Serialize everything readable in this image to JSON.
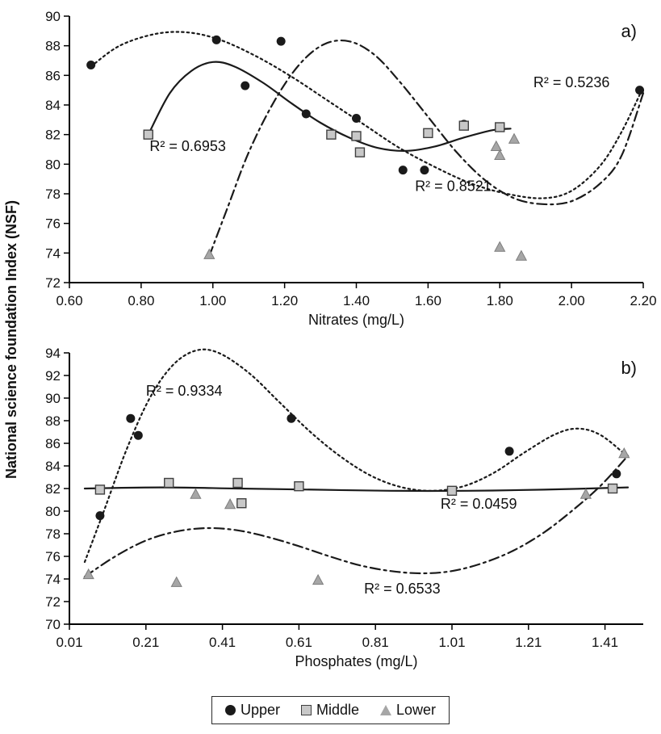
{
  "shared_ylabel": "National science foundation Index (NSF)",
  "colors": {
    "axis": "#000000",
    "text": "#111111",
    "line": "#1a1a1a",
    "upper_fill": "#1a1a1a",
    "middle_fill": "#c8c8c8",
    "middle_edge": "#404040",
    "lower_fill": "#a6a6a6",
    "lower_edge": "#7d7d7d"
  },
  "legend": {
    "items": [
      {
        "label": "Upper",
        "marker": "circle"
      },
      {
        "label": "Middle",
        "marker": "square"
      },
      {
        "label": "Lower",
        "marker": "triangle"
      }
    ]
  },
  "chart_data": [
    {
      "type": "scatter",
      "panel_label": "a)",
      "xlabel": "Nitrates (mg/L)",
      "xlim": [
        0.6,
        2.2
      ],
      "ylim": [
        72,
        90
      ],
      "xticks": [
        0.6,
        0.8,
        1.0,
        1.2,
        1.4,
        1.6,
        1.8,
        2.0,
        2.2
      ],
      "xtick_labels": [
        "0.60",
        "0.80",
        "1.00",
        "1.20",
        "1.40",
        "1.60",
        "1.80",
        "2.00",
        "2.20"
      ],
      "yticks": [
        72,
        74,
        76,
        78,
        80,
        82,
        84,
        86,
        88,
        90
      ],
      "series": [
        {
          "name": "Upper",
          "marker": "circle",
          "points": [
            [
              0.66,
              86.7
            ],
            [
              1.01,
              88.4
            ],
            [
              1.09,
              85.3
            ],
            [
              1.19,
              88.3
            ],
            [
              1.26,
              83.4
            ],
            [
              1.4,
              83.1
            ],
            [
              1.53,
              79.6
            ],
            [
              1.59,
              79.6
            ],
            [
              1.7,
              82.7
            ],
            [
              2.19,
              85.0
            ]
          ]
        },
        {
          "name": "Middle",
          "marker": "square",
          "points": [
            [
              0.82,
              82.0
            ],
            [
              1.33,
              82.0
            ],
            [
              1.4,
              81.9
            ],
            [
              1.41,
              80.8
            ],
            [
              1.6,
              82.1
            ],
            [
              1.7,
              82.6
            ],
            [
              1.8,
              82.5
            ]
          ]
        },
        {
          "name": "Lower",
          "marker": "triangle",
          "points": [
            [
              0.99,
              73.9
            ],
            [
              1.79,
              81.2
            ],
            [
              1.8,
              80.6
            ],
            [
              1.84,
              81.7
            ],
            [
              1.8,
              74.4
            ],
            [
              1.86,
              73.8
            ]
          ]
        }
      ],
      "trendlines": [
        {
          "series": "Upper",
          "style": "dotted",
          "points": [
            [
              0.66,
              86.6
            ],
            [
              0.74,
              88.0
            ],
            [
              0.84,
              88.8
            ],
            [
              0.93,
              88.9
            ],
            [
              1.02,
              88.4
            ],
            [
              1.12,
              87.3
            ],
            [
              1.22,
              85.9
            ],
            [
              1.32,
              84.3
            ],
            [
              1.42,
              82.7
            ],
            [
              1.52,
              81.1
            ],
            [
              1.62,
              79.8
            ],
            [
              1.72,
              78.7
            ],
            [
              1.82,
              78.0
            ],
            [
              1.92,
              77.7
            ],
            [
              2.0,
              78.2
            ],
            [
              2.08,
              79.9
            ],
            [
              2.14,
              82.2
            ],
            [
              2.2,
              85.2
            ]
          ]
        },
        {
          "series": "Middle",
          "style": "solid",
          "points": [
            [
              0.82,
              82.0
            ],
            [
              0.88,
              84.8
            ],
            [
              0.94,
              86.3
            ],
            [
              1.0,
              86.9
            ],
            [
              1.06,
              86.6
            ],
            [
              1.14,
              85.5
            ],
            [
              1.22,
              84.1
            ],
            [
              1.3,
              82.8
            ],
            [
              1.38,
              81.8
            ],
            [
              1.46,
              81.1
            ],
            [
              1.54,
              80.9
            ],
            [
              1.62,
              81.2
            ],
            [
              1.7,
              81.8
            ],
            [
              1.78,
              82.3
            ],
            [
              1.83,
              82.4
            ]
          ]
        },
        {
          "series": "Lower",
          "style": "dashdot",
          "points": [
            [
              0.99,
              73.8
            ],
            [
              1.04,
              77.0
            ],
            [
              1.1,
              80.8
            ],
            [
              1.17,
              84.2
            ],
            [
              1.24,
              86.7
            ],
            [
              1.31,
              88.1
            ],
            [
              1.38,
              88.3
            ],
            [
              1.45,
              87.4
            ],
            [
              1.52,
              85.6
            ],
            [
              1.6,
              83.2
            ],
            [
              1.68,
              80.8
            ],
            [
              1.76,
              78.9
            ],
            [
              1.84,
              77.7
            ],
            [
              1.92,
              77.3
            ],
            [
              2.0,
              77.5
            ],
            [
              2.08,
              78.7
            ],
            [
              2.14,
              80.6
            ],
            [
              2.2,
              84.8
            ]
          ]
        }
      ],
      "annotations": [
        {
          "text": "R² = 0.6953",
          "x": 0.93,
          "y": 80.9
        },
        {
          "text": "R² = 0.8521",
          "x": 1.67,
          "y": 78.2
        },
        {
          "text": "R² = 0.5236",
          "x": 2.0,
          "y": 85.2
        }
      ]
    },
    {
      "type": "scatter",
      "panel_label": "b)",
      "xlabel": "Phosphates (mg/L)",
      "xlim": [
        0.01,
        1.51
      ],
      "ylim": [
        70,
        94
      ],
      "xticks": [
        0.01,
        0.21,
        0.41,
        0.61,
        0.81,
        1.01,
        1.21,
        1.41
      ],
      "xtick_labels": [
        "0.01",
        "0.21",
        "0.41",
        "0.61",
        "0.81",
        "1.01",
        "1.21",
        "1.41"
      ],
      "yticks": [
        70,
        72,
        74,
        76,
        78,
        80,
        82,
        84,
        86,
        88,
        90,
        92,
        94
      ],
      "series": [
        {
          "name": "Upper",
          "marker": "circle",
          "points": [
            [
              0.09,
              79.6
            ],
            [
              0.17,
              88.2
            ],
            [
              0.19,
              86.7
            ],
            [
              0.59,
              88.2
            ],
            [
              1.16,
              85.3
            ],
            [
              1.44,
              83.3
            ]
          ]
        },
        {
          "name": "Middle",
          "marker": "square",
          "points": [
            [
              0.09,
              81.9
            ],
            [
              0.27,
              82.5
            ],
            [
              0.45,
              82.5
            ],
            [
              0.46,
              80.7
            ],
            [
              0.61,
              82.2
            ],
            [
              1.01,
              81.8
            ],
            [
              1.43,
              82.0
            ]
          ]
        },
        {
          "name": "Lower",
          "marker": "triangle",
          "points": [
            [
              0.06,
              74.4
            ],
            [
              0.29,
              73.7
            ],
            [
              0.34,
              81.5
            ],
            [
              0.43,
              80.6
            ],
            [
              0.66,
              73.9
            ],
            [
              1.36,
              81.5
            ],
            [
              1.46,
              85.1
            ]
          ]
        }
      ],
      "trendlines": [
        {
          "series": "Upper",
          "style": "dotted",
          "points": [
            [
              0.05,
              75.5
            ],
            [
              0.1,
              80.0
            ],
            [
              0.16,
              85.5
            ],
            [
              0.22,
              90.0
            ],
            [
              0.28,
              92.9
            ],
            [
              0.34,
              94.2
            ],
            [
              0.4,
              94.0
            ],
            [
              0.48,
              92.2
            ],
            [
              0.56,
              89.6
            ],
            [
              0.64,
              87.0
            ],
            [
              0.72,
              84.8
            ],
            [
              0.8,
              83.1
            ],
            [
              0.88,
              82.1
            ],
            [
              0.96,
              81.8
            ],
            [
              1.04,
              82.2
            ],
            [
              1.12,
              83.4
            ],
            [
              1.2,
              85.2
            ],
            [
              1.28,
              86.8
            ],
            [
              1.34,
              87.3
            ],
            [
              1.4,
              86.7
            ],
            [
              1.47,
              84.8
            ]
          ]
        },
        {
          "series": "Middle",
          "style": "solid",
          "points": [
            [
              0.05,
              82.0
            ],
            [
              0.25,
              82.1
            ],
            [
              0.45,
              82.0
            ],
            [
              0.65,
              81.9
            ],
            [
              0.85,
              81.8
            ],
            [
              1.05,
              81.8
            ],
            [
              1.25,
              81.9
            ],
            [
              1.47,
              82.1
            ]
          ]
        },
        {
          "series": "Lower",
          "style": "dashdot",
          "points": [
            [
              0.05,
              74.2
            ],
            [
              0.13,
              76.0
            ],
            [
              0.21,
              77.4
            ],
            [
              0.29,
              78.2
            ],
            [
              0.37,
              78.5
            ],
            [
              0.45,
              78.3
            ],
            [
              0.53,
              77.7
            ],
            [
              0.61,
              76.9
            ],
            [
              0.69,
              76.0
            ],
            [
              0.77,
              75.2
            ],
            [
              0.85,
              74.7
            ],
            [
              0.93,
              74.5
            ],
            [
              1.01,
              74.7
            ],
            [
              1.09,
              75.4
            ],
            [
              1.17,
              76.5
            ],
            [
              1.25,
              78.1
            ],
            [
              1.33,
              80.2
            ],
            [
              1.4,
              82.3
            ],
            [
              1.47,
              84.9
            ]
          ]
        }
      ],
      "annotations": [
        {
          "text": "R² = 0.9334",
          "x": 0.31,
          "y": 90.2
        },
        {
          "text": "R² = 0.0459",
          "x": 1.08,
          "y": 80.2
        },
        {
          "text": "R² = 0.6533",
          "x": 0.88,
          "y": 72.7
        }
      ]
    }
  ]
}
